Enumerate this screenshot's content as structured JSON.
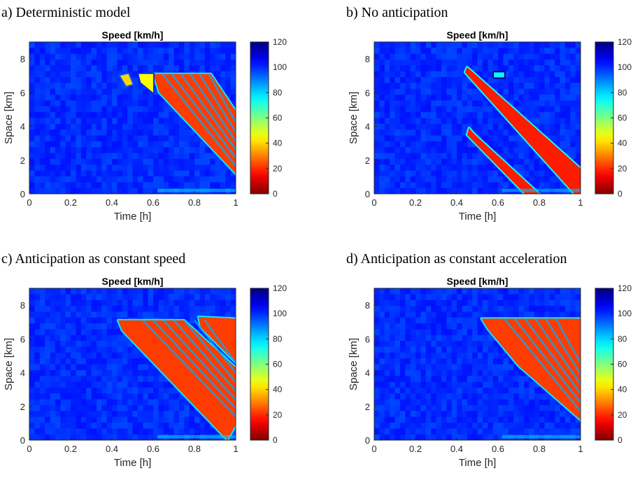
{
  "chart_data": [
    {
      "type": "heatmap",
      "panel_label": "a) Deterministic model",
      "title": "Speed [km/h]",
      "xlabel": "Time [h]",
      "ylabel": "Space [km]",
      "xlim": [
        0,
        1
      ],
      "ylim": [
        0,
        9
      ],
      "xticks": [
        "0",
        "0.2",
        "0.4",
        "0.6",
        "0.8",
        "1"
      ],
      "yticks": [
        "0",
        "2",
        "4",
        "6",
        "8"
      ],
      "colorbar": {
        "range": [
          0,
          120
        ],
        "ticks": [
          "0",
          "20",
          "40",
          "60",
          "80",
          "100",
          "120"
        ]
      },
      "free_flow_speed": 100,
      "free_flow_noise": 6,
      "low_speed_regions": [
        {
          "speed": 22,
          "vertices": [
            [
              0.6,
              7.1
            ],
            [
              0.88,
              7.1
            ],
            [
              1.0,
              4.9
            ],
            [
              1.0,
              1.2
            ],
            [
              0.63,
              6.0
            ]
          ]
        },
        {
          "speed": 40,
          "vertices": [
            [
              0.44,
              7.0
            ],
            [
              0.48,
              7.1
            ],
            [
              0.5,
              6.5
            ],
            [
              0.47,
              6.4
            ]
          ]
        },
        {
          "speed": 45,
          "vertices": [
            [
              0.53,
              7.1
            ],
            [
              0.6,
              7.1
            ],
            [
              0.6,
              6.0
            ],
            [
              0.54,
              6.6
            ]
          ]
        }
      ],
      "wave_bands": {
        "speed": 85,
        "spacing_h": 0.045,
        "count": 6,
        "start": [
          0.6,
          7.1
        ],
        "end": [
          1.0,
          1.2
        ]
      },
      "bottom_band": {
        "speed": 80,
        "x": [
          0.62,
          1.0
        ],
        "y": [
          0.1,
          0.3
        ]
      }
    },
    {
      "type": "heatmap",
      "panel_label": "b) No anticipation",
      "title": "Speed [km/h]",
      "xlabel": "Time [h]",
      "ylabel": "Space [km]",
      "xlim": [
        0,
        1
      ],
      "ylim": [
        0,
        9
      ],
      "xticks": [
        "0",
        "0.2",
        "0.4",
        "0.6",
        "0.8",
        "1"
      ],
      "yticks": [
        "0",
        "2",
        "4",
        "6",
        "8"
      ],
      "colorbar": {
        "range": [
          0,
          120
        ],
        "ticks": [
          "0",
          "20",
          "40",
          "60",
          "80",
          "100",
          "120"
        ]
      },
      "free_flow_speed": 100,
      "free_flow_noise": 6,
      "low_speed_regions": [
        {
          "speed": 18,
          "vertices": [
            [
              0.45,
              7.5
            ],
            [
              0.47,
              7.3
            ],
            [
              1.0,
              1.5
            ],
            [
              1.0,
              0.0
            ],
            [
              0.97,
              0.0
            ],
            [
              0.44,
              7.2
            ]
          ]
        },
        {
          "speed": 18,
          "vertices": [
            [
              0.46,
              3.9
            ],
            [
              0.48,
              3.6
            ],
            [
              0.8,
              0.0
            ],
            [
              0.73,
              0.0
            ],
            [
              0.45,
              3.5
            ]
          ]
        },
        {
          "speed": 75,
          "vertices": [
            [
              0.58,
              7.2
            ],
            [
              0.63,
              7.2
            ],
            [
              0.63,
              6.9
            ],
            [
              0.58,
              6.9
            ]
          ]
        }
      ],
      "wave_bands": null,
      "bottom_band": {
        "speed": 82,
        "x": [
          0.62,
          1.0
        ],
        "y": [
          0.1,
          0.3
        ]
      }
    },
    {
      "type": "heatmap",
      "panel_label": "c) Anticipation as constant speed",
      "title": "Speed [km/h]",
      "xlabel": "Time [h]",
      "ylabel": "Space [km]",
      "xlim": [
        0,
        1
      ],
      "ylim": [
        0,
        9
      ],
      "xticks": [
        "0",
        "0.2",
        "0.4",
        "0.6",
        "0.8",
        "1"
      ],
      "yticks": [
        "0",
        "2",
        "4",
        "6",
        "8"
      ],
      "colorbar": {
        "range": [
          0,
          120
        ],
        "ticks": [
          "0",
          "20",
          "40",
          "60",
          "80",
          "100",
          "120"
        ]
      },
      "free_flow_speed": 100,
      "free_flow_noise": 6,
      "low_speed_regions": [
        {
          "speed": 22,
          "vertices": [
            [
              0.43,
              7.1
            ],
            [
              0.75,
              7.1
            ],
            [
              1.0,
              4.3
            ],
            [
              1.0,
              0.9
            ],
            [
              0.96,
              0.0
            ],
            [
              0.45,
              6.5
            ]
          ]
        },
        {
          "speed": 22,
          "vertices": [
            [
              0.82,
              7.3
            ],
            [
              1.0,
              7.2
            ],
            [
              1.0,
              4.6
            ],
            [
              0.83,
              6.7
            ]
          ]
        }
      ],
      "wave_bands": {
        "speed": 85,
        "spacing_h": 0.05,
        "count": 7,
        "start": [
          0.5,
          7.1
        ],
        "end": [
          1.0,
          0.9
        ]
      },
      "bottom_band": {
        "speed": 80,
        "x": [
          0.62,
          1.0
        ],
        "y": [
          0.1,
          0.3
        ]
      }
    },
    {
      "type": "heatmap",
      "panel_label": "d) Anticipation as constant acceleration",
      "title": "Speed [km/h]",
      "xlabel": "Time [h]",
      "ylabel": "Space [km]",
      "xlim": [
        0,
        1
      ],
      "ylim": [
        0,
        9
      ],
      "xticks": [
        "0",
        "0.2",
        "0.4",
        "0.6",
        "0.8",
        "1"
      ],
      "yticks": [
        "0",
        "2",
        "4",
        "6",
        "8"
      ],
      "colorbar": {
        "range": [
          0,
          120
        ],
        "ticks": [
          "0",
          "20",
          "40",
          "60",
          "80",
          "100",
          "120"
        ]
      },
      "free_flow_speed": 100,
      "free_flow_noise": 6,
      "low_speed_regions": [
        {
          "speed": 22,
          "vertices": [
            [
              0.52,
              7.2
            ],
            [
              1.0,
              7.2
            ],
            [
              1.0,
              1.2
            ],
            [
              0.7,
              4.4
            ],
            [
              0.55,
              6.6
            ]
          ]
        }
      ],
      "wave_bands": {
        "speed": 85,
        "spacing_h": 0.05,
        "count": 6,
        "start": [
          0.58,
          7.2
        ],
        "end": [
          1.0,
          1.2
        ]
      },
      "bottom_band": {
        "speed": 80,
        "x": [
          0.62,
          1.0
        ],
        "y": [
          0.1,
          0.3
        ]
      }
    }
  ]
}
